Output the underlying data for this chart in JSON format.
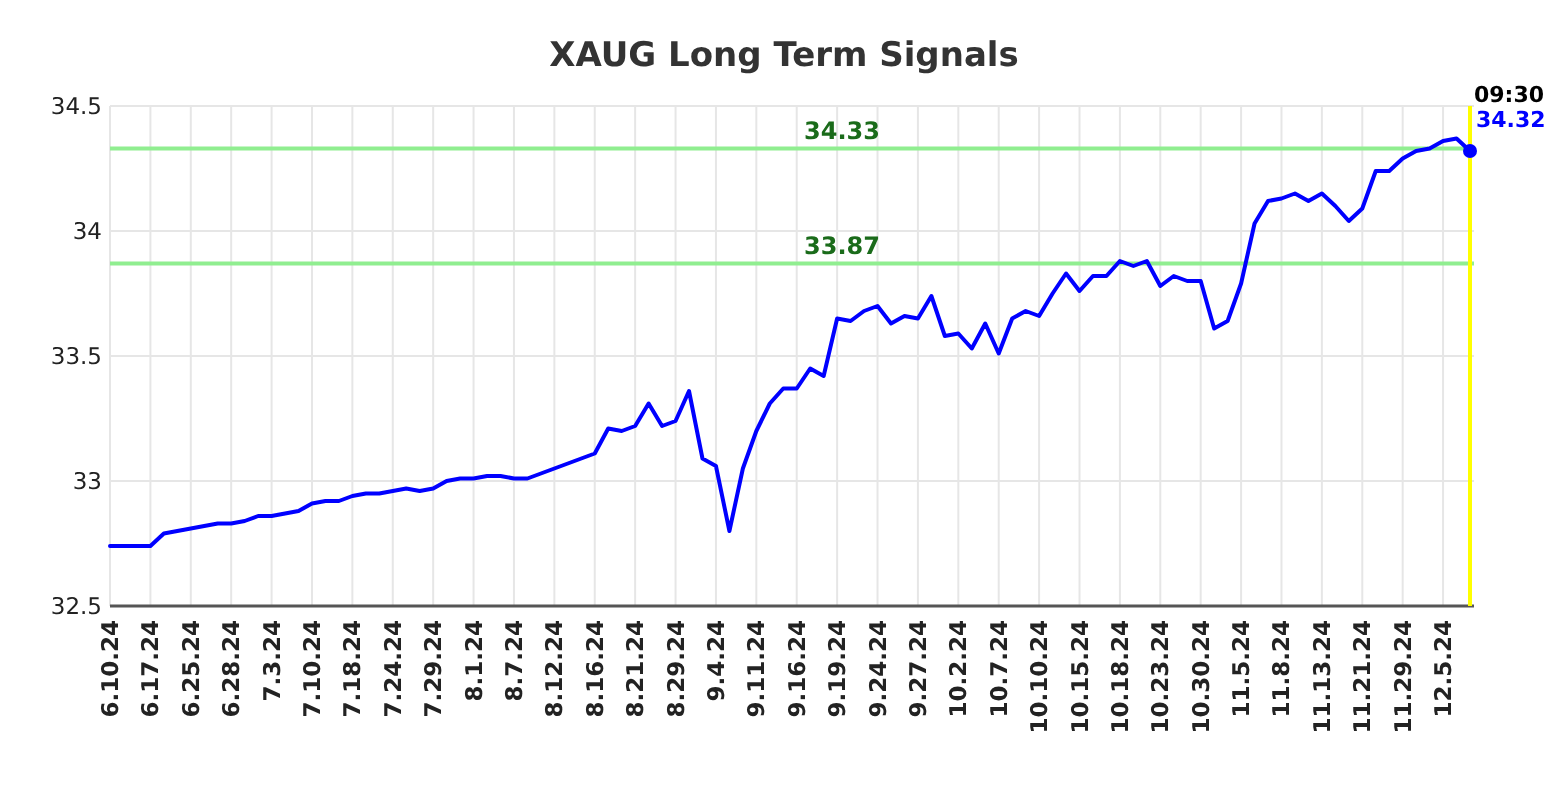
{
  "chart_data": {
    "type": "line",
    "title": "XAUG Long Term Signals",
    "categories": [
      "6.10.24",
      null,
      null,
      "6.17.24",
      null,
      null,
      "6.25.24",
      null,
      null,
      "6.28.24",
      null,
      null,
      "7.3.24",
      null,
      null,
      "7.10.24",
      null,
      null,
      "7.18.24",
      null,
      null,
      "7.24.24",
      null,
      null,
      "7.29.24",
      null,
      null,
      "8.1.24",
      null,
      null,
      "8.7.24",
      null,
      null,
      "8.12.24",
      null,
      null,
      "8.16.24",
      null,
      null,
      "8.21.24",
      null,
      null,
      "8.29.24",
      null,
      null,
      "9.4.24",
      null,
      null,
      "9.11.24",
      null,
      null,
      "9.16.24",
      null,
      null,
      "9.19.24",
      null,
      null,
      "9.24.24",
      null,
      null,
      "9.27.24",
      null,
      null,
      "10.2.24",
      null,
      null,
      "10.7.24",
      null,
      null,
      "10.10.24",
      null,
      null,
      "10.15.24",
      null,
      null,
      "10.18.24",
      null,
      null,
      "10.23.24",
      null,
      null,
      "10.30.24",
      null,
      null,
      "11.5.24",
      null,
      null,
      "11.8.24",
      null,
      null,
      "11.13.24",
      null,
      null,
      "11.21.24",
      null,
      null,
      "11.29.24",
      null,
      null,
      "12.5.24",
      null,
      null
    ],
    "series": [
      {
        "color": "#0000ff",
        "values": [
          32.74,
          32.74,
          32.74,
          32.74,
          32.79,
          32.8,
          32.81,
          32.82,
          32.83,
          32.83,
          32.84,
          32.86,
          32.86,
          32.87,
          32.88,
          32.91,
          32.92,
          32.92,
          32.94,
          32.95,
          32.95,
          32.96,
          32.97,
          32.96,
          32.97,
          33.0,
          33.01,
          33.01,
          33.02,
          33.02,
          33.01,
          33.01,
          33.03,
          33.05,
          33.07,
          33.09,
          33.11,
          33.21,
          33.2,
          33.22,
          33.31,
          33.22,
          33.24,
          33.36,
          33.09,
          33.06,
          32.8,
          33.05,
          33.2,
          33.31,
          33.37,
          33.37,
          33.45,
          33.42,
          33.65,
          33.64,
          33.68,
          33.7,
          33.63,
          33.66,
          33.65,
          33.74,
          33.58,
          33.59,
          33.53,
          33.63,
          33.51,
          33.65,
          33.68,
          33.66,
          33.75,
          33.83,
          33.76,
          33.82,
          33.82,
          33.88,
          33.86,
          33.88,
          33.78,
          33.82,
          33.8,
          33.8,
          33.61,
          33.64,
          33.79,
          34.03,
          34.12,
          34.13,
          34.15,
          34.12,
          34.15,
          34.1,
          34.04,
          34.09,
          34.24,
          34.24,
          34.29,
          34.32,
          34.33,
          34.36,
          34.37,
          34.32
        ]
      }
    ],
    "ylim": [
      32.5,
      34.5
    ],
    "yticks": [
      32.5,
      33,
      33.5,
      34,
      34.5
    ],
    "grid": true,
    "ref_lines": [
      {
        "axis": "y",
        "value": 34.33,
        "label": "34.33",
        "color": "#90ee90"
      },
      {
        "axis": "y",
        "value": 33.87,
        "label": "33.87",
        "color": "#90ee90"
      }
    ],
    "annotations": [
      "09:30",
      "34.32"
    ]
  }
}
